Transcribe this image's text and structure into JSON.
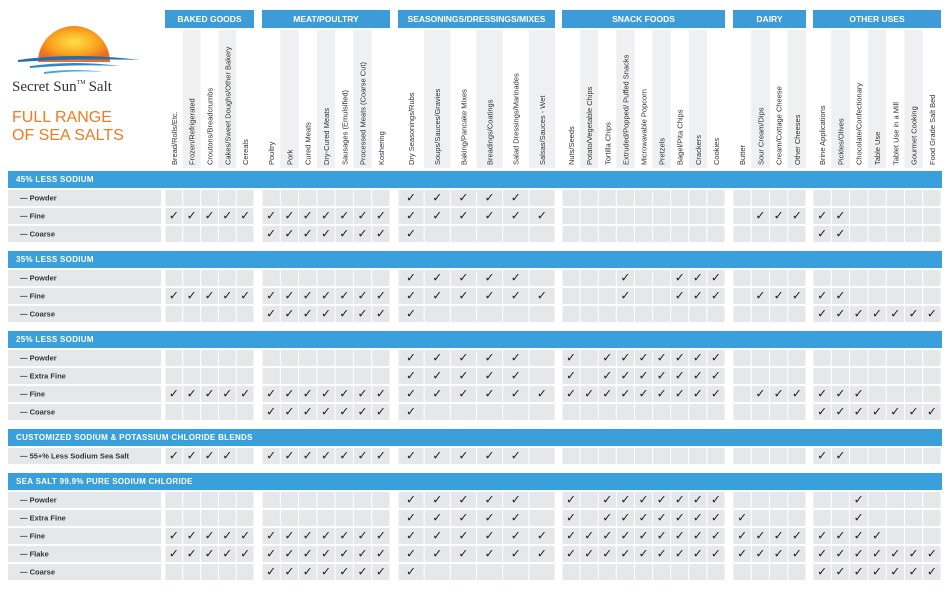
{
  "logo": {
    "brand": "Secret Sun",
    "tm": "TM",
    "suffix": "Salt",
    "tagline": [
      "FULL RANGE",
      "OF SEA SALTS"
    ]
  },
  "groups": [
    {
      "title": "BAKED GOODS",
      "columns": [
        "Bread/Rolls/Etc.",
        "Frozen/Refrigerated",
        "Croutons/Breadcrumbs",
        "Cakes/Sweet Doughs/Other Bakery",
        "Cereals"
      ]
    },
    {
      "title": "MEAT/POULTRY",
      "columns": [
        "Poultry",
        "Pork",
        "Cured Meats",
        "Dry-Cured Meats",
        "Sausages (Emulsified)",
        "Processed Meats (Coarse Cut)",
        "Koshering"
      ]
    },
    {
      "title": "SEASONINGS/DRESSINGS/MIXES",
      "columns": [
        "Dry Seasonings/Rubs",
        "Soups/Sauces/Gravies",
        "Baking/Pancake Mixes",
        "Breadings/Coatings",
        "Salad Dressings/Marinades",
        "Salsas/Sauces - Wet"
      ]
    },
    {
      "title": "SNACK FOODS",
      "columns": [
        "Nuts/Seeds",
        "Potato/Vegetable Chips",
        "Tortilla Chips",
        "Extruded/Popped/ Puffed Snacks",
        "Microwavable Popcorn",
        "Pretzels",
        "Bagel/Pita Chips",
        "Crackers",
        "Cookies"
      ]
    },
    {
      "title": "DAIRY",
      "columns": [
        "Butter",
        "Sour Cream/Dips",
        "Cream/Cottage Cheese",
        "Other Cheeses"
      ]
    },
    {
      "title": "OTHER USES",
      "columns": [
        "Brine Applications",
        "Pickles/Olives",
        "Chocolate/Confectionary",
        "Table Use",
        "Tablet Use in a Mill",
        "Gourmet Cooking",
        "Food Grade Salt Bed"
      ]
    }
  ],
  "sections": [
    {
      "title": "45% LESS SODIUM",
      "rows": [
        {
          "label": "— Powder",
          "cells": [
            null,
            null,
            null,
            null,
            null,
            null,
            null,
            null,
            null,
            null,
            null,
            null,
            "✓",
            "✓",
            "✓",
            "✓",
            "✓",
            null,
            null,
            null,
            null,
            null,
            null,
            null,
            null,
            null,
            null,
            null,
            null,
            null,
            null,
            null,
            null,
            null,
            null,
            null,
            null,
            null
          ]
        },
        {
          "label": "— Fine",
          "cells": [
            "✓",
            "✓",
            "✓",
            "✓",
            "✓",
            "✓",
            "✓",
            "✓",
            "✓",
            "✓",
            "✓",
            "✓",
            "✓",
            "✓",
            "✓",
            "✓",
            "✓",
            "✓",
            null,
            null,
            null,
            null,
            null,
            null,
            null,
            null,
            null,
            null,
            "✓",
            "✓",
            "✓",
            "✓",
            "✓",
            null,
            null,
            null,
            null,
            null
          ]
        },
        {
          "label": "— Coarse",
          "cells": [
            null,
            null,
            null,
            null,
            null,
            "✓",
            "✓",
            "✓",
            "✓",
            "✓",
            "✓",
            "✓",
            "✓",
            null,
            null,
            null,
            null,
            null,
            null,
            null,
            null,
            null,
            null,
            null,
            null,
            null,
            null,
            null,
            null,
            null,
            null,
            "✓",
            "✓",
            null,
            null,
            null,
            null,
            null
          ]
        }
      ]
    },
    {
      "title": "35% LESS SODIUM",
      "rows": [
        {
          "label": "— Powder",
          "cells": [
            null,
            null,
            null,
            null,
            null,
            null,
            null,
            null,
            null,
            null,
            null,
            null,
            "✓",
            "✓",
            "✓",
            "✓",
            "✓",
            null,
            null,
            null,
            null,
            "✓",
            null,
            null,
            "✓",
            "✓",
            "✓",
            null,
            null,
            null,
            null,
            null,
            null,
            null,
            null,
            null,
            null,
            null
          ]
        },
        {
          "label": "— Fine",
          "cells": [
            "✓",
            "✓",
            "✓",
            "✓",
            "✓",
            "✓",
            "✓",
            "✓",
            "✓",
            "✓",
            "✓",
            "✓",
            "✓",
            "✓",
            "✓",
            "✓",
            "✓",
            "✓",
            null,
            null,
            null,
            "✓",
            null,
            null,
            "✓",
            "✓",
            "✓",
            null,
            "✓",
            "✓",
            "✓",
            "✓",
            "✓",
            null,
            null,
            null,
            null,
            null
          ]
        },
        {
          "label": "— Coarse",
          "cells": [
            null,
            null,
            null,
            null,
            null,
            "✓",
            "✓",
            "✓",
            "✓",
            "✓",
            "✓",
            "✓",
            "✓",
            null,
            null,
            null,
            null,
            null,
            null,
            null,
            null,
            null,
            null,
            null,
            null,
            null,
            null,
            null,
            null,
            null,
            null,
            "✓",
            "✓",
            "✓",
            "✓",
            "✓",
            "✓",
            "✓"
          ]
        }
      ]
    },
    {
      "title": "25% LESS SODIUM",
      "rows": [
        {
          "label": "— Powder",
          "cells": [
            null,
            null,
            null,
            null,
            null,
            null,
            null,
            null,
            null,
            null,
            null,
            null,
            "✓",
            "✓",
            "✓",
            "✓",
            "✓",
            null,
            "✓",
            null,
            "✓",
            "✓",
            "✓",
            "✓",
            "✓",
            "✓",
            "✓",
            null,
            null,
            null,
            null,
            null,
            null,
            null,
            null,
            null,
            null,
            null
          ]
        },
        {
          "label": "— Extra Fine",
          "cells": [
            null,
            null,
            null,
            null,
            null,
            null,
            null,
            null,
            null,
            null,
            null,
            null,
            "✓",
            "✓",
            "✓",
            "✓",
            "✓",
            null,
            "✓",
            null,
            "✓",
            "✓",
            "✓",
            "✓",
            "✓",
            "✓",
            "✓",
            null,
            null,
            null,
            null,
            null,
            null,
            null,
            null,
            null,
            null,
            null
          ]
        },
        {
          "label": "— Fine",
          "cells": [
            "✓",
            "✓",
            "✓",
            "✓",
            "✓",
            "✓",
            "✓",
            "✓",
            "✓",
            "✓",
            "✓",
            "✓",
            "✓",
            "✓",
            "✓",
            "✓",
            "✓",
            "✓",
            "✓",
            "✓",
            "✓",
            "✓",
            "✓",
            "✓",
            "✓",
            "✓",
            "✓",
            null,
            "✓",
            "✓",
            "✓",
            "✓",
            "✓",
            "✓",
            null,
            null,
            null,
            null
          ]
        },
        {
          "label": "— Coarse",
          "cells": [
            null,
            null,
            null,
            null,
            null,
            "✓",
            "✓",
            "✓",
            "✓",
            "✓",
            "✓",
            "✓",
            "✓",
            null,
            null,
            null,
            null,
            null,
            null,
            null,
            null,
            null,
            null,
            null,
            null,
            null,
            null,
            null,
            null,
            null,
            null,
            "✓",
            "✓",
            "✓",
            "✓",
            "✓",
            "✓",
            "✓"
          ]
        }
      ]
    },
    {
      "title": "CUSTOMIZED SODIUM & POTASSIUM CHLORIDE BLENDS",
      "rows": [
        {
          "label": "— 55+% Less Sodium Sea Salt",
          "cells": [
            "✓",
            "✓",
            "✓",
            "✓",
            null,
            "✓",
            "✓",
            "✓",
            "✓",
            "✓",
            "✓",
            "✓",
            "✓",
            "✓",
            "✓",
            "✓",
            "✓",
            null,
            null,
            null,
            null,
            null,
            null,
            null,
            null,
            null,
            null,
            null,
            null,
            null,
            null,
            "✓",
            "✓",
            null,
            null,
            null,
            null,
            null
          ]
        }
      ]
    },
    {
      "title": "SEA SALT 99.9% PURE SODIUM CHLORIDE",
      "rows": [
        {
          "label": "— Powder",
          "cells": [
            null,
            null,
            null,
            null,
            null,
            null,
            null,
            null,
            null,
            null,
            null,
            null,
            "✓",
            "✓",
            "✓",
            "✓",
            "✓",
            null,
            "✓",
            null,
            "✓",
            "✓",
            "✓",
            "✓",
            "✓",
            "✓",
            "✓",
            null,
            null,
            null,
            null,
            null,
            null,
            "✓",
            null,
            null,
            null,
            null
          ]
        },
        {
          "label": "— Extra Fine",
          "cells": [
            null,
            null,
            null,
            null,
            null,
            null,
            null,
            null,
            null,
            null,
            null,
            null,
            "✓",
            "✓",
            "✓",
            "✓",
            "✓",
            null,
            "✓",
            null,
            "✓",
            "✓",
            "✓",
            "✓",
            "✓",
            "✓",
            "✓",
            "✓",
            null,
            null,
            null,
            null,
            null,
            "✓",
            null,
            null,
            null,
            null
          ]
        },
        {
          "label": "— Fine",
          "cells": [
            "✓",
            "✓",
            "✓",
            "✓",
            "✓",
            "✓",
            "✓",
            "✓",
            "✓",
            "✓",
            "✓",
            "✓",
            "✓",
            "✓",
            "✓",
            "✓",
            "✓",
            "✓",
            "✓",
            "✓",
            "✓",
            "✓",
            "✓",
            "✓",
            "✓",
            "✓",
            "✓",
            "✓",
            "✓",
            "✓",
            "✓",
            "✓",
            "✓",
            "✓",
            "✓",
            null,
            null,
            null
          ]
        },
        {
          "label": "— Flake",
          "cells": [
            "✓",
            "✓",
            "✓",
            "✓",
            "✓",
            "✓",
            "✓",
            "✓",
            "✓",
            "✓",
            "✓",
            "✓",
            "✓",
            "✓",
            "✓",
            "✓",
            "✓",
            "✓",
            "✓",
            "✓",
            "✓",
            "✓",
            "✓",
            "✓",
            "✓",
            "✓",
            "✓",
            "✓",
            "✓",
            "✓",
            "✓",
            "✓",
            "✓",
            "✓",
            "✓",
            "✓",
            "✓",
            "✓"
          ]
        },
        {
          "label": "— Coarse",
          "cells": [
            null,
            null,
            null,
            null,
            null,
            "✓",
            "✓",
            "✓",
            "✓",
            "✓",
            "✓",
            "✓",
            "✓",
            null,
            null,
            null,
            null,
            null,
            null,
            null,
            null,
            null,
            null,
            null,
            null,
            null,
            null,
            null,
            null,
            null,
            null,
            "✓",
            "✓",
            "✓",
            "✓",
            "✓",
            "✓",
            "✓"
          ]
        }
      ]
    }
  ]
}
